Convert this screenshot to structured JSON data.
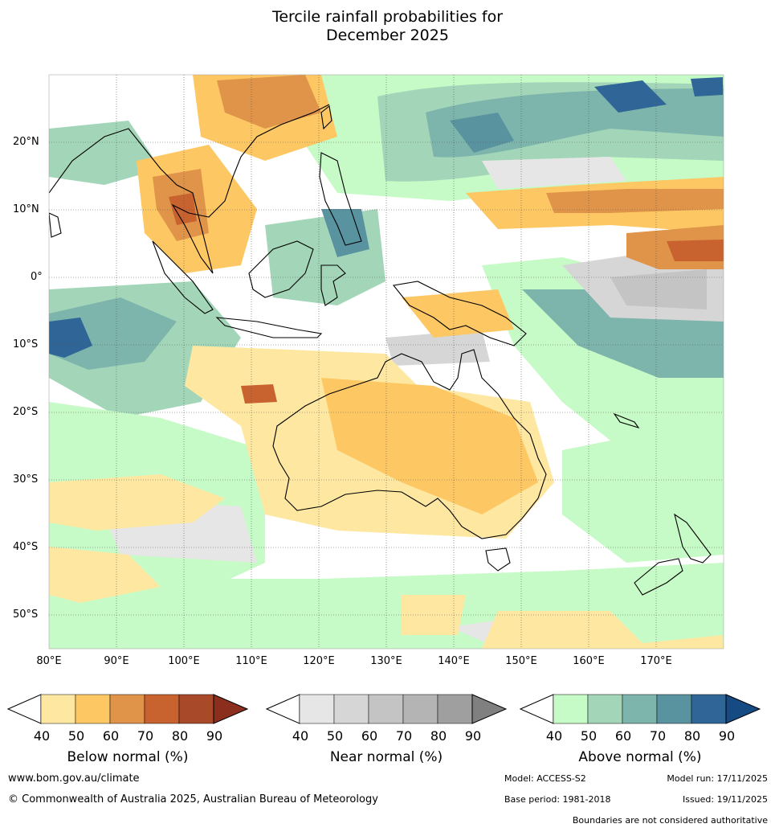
{
  "title_line1": "Tercile rainfall probabilities for",
  "title_line2": "December 2025",
  "lat_labels": [
    "20°N",
    "10°N",
    "0°",
    "10°S",
    "20°S",
    "30°S",
    "40°S",
    "50°S"
  ],
  "lon_labels": [
    "80°E",
    "90°E",
    "100°E",
    "110°E",
    "120°E",
    "130°E",
    "140°E",
    "150°E",
    "160°E",
    "170°E"
  ],
  "colorbars": [
    {
      "title": "Below normal (%)",
      "ticks": [
        "40",
        "50",
        "60",
        "70",
        "80",
        "90"
      ],
      "colors": [
        "#fee8a1",
        "#fdc864",
        "#e0944a",
        "#c8622f",
        "#a8492a",
        "#8b2e1e"
      ]
    },
    {
      "title": "Near normal (%)",
      "ticks": [
        "40",
        "50",
        "60",
        "70",
        "80",
        "90"
      ],
      "colors": [
        "#e6e6e6",
        "#d6d6d6",
        "#c4c4c4",
        "#b4b4b4",
        "#9f9f9f",
        "#808080"
      ]
    },
    {
      "title": "Above normal (%)",
      "ticks": [
        "40",
        "50",
        "60",
        "70",
        "80",
        "90"
      ],
      "colors": [
        "#c6fac6",
        "#a3d6b8",
        "#7db4ab",
        "#5a93a0",
        "#2f6597",
        "#154a82"
      ]
    }
  ],
  "footer": {
    "website": "www.bom.gov.au/climate",
    "copyright": "© Commonwealth of Australia 2025, Australian Bureau of Meteorology",
    "model": "Model: ACCESS-S2",
    "model_run": "Model run: 17/11/2025",
    "base_period": "Base period: 1981-2018",
    "issued": "Issued: 19/11/2025",
    "disclaimer": "Boundaries are not considered authoritative"
  }
}
